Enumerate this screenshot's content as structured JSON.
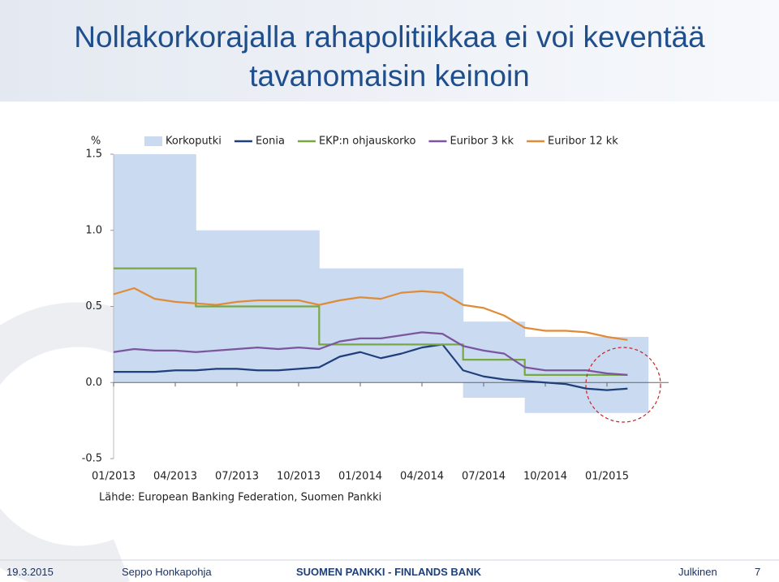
{
  "title": "Nollakorkorajalla rahapolitiikkaa ei voi keventää tavanomaisin keinoin",
  "chart_data": {
    "type": "line",
    "ylabel": "%",
    "x": [
      "01/2013",
      "02/2013",
      "03/2013",
      "04/2013",
      "05/2013",
      "06/2013",
      "07/2013",
      "08/2013",
      "09/2013",
      "10/2013",
      "11/2013",
      "12/2013",
      "01/2014",
      "02/2014",
      "03/2014",
      "04/2014",
      "05/2014",
      "06/2014",
      "07/2014",
      "08/2014",
      "09/2014",
      "10/2014",
      "11/2014",
      "12/2014",
      "01/2015",
      "02/2015"
    ],
    "xlim": [
      "01/2013",
      "04/2015"
    ],
    "xticks": [
      "01/2013",
      "04/2013",
      "07/2013",
      "10/2013",
      "01/2014",
      "04/2014",
      "07/2014",
      "10/2014",
      "01/2015"
    ],
    "ylim": [
      -0.5,
      1.5
    ],
    "yticks": [
      {
        "value": 1.5,
        "label": "1.5"
      },
      {
        "value": 1.0,
        "label": "1.0"
      },
      {
        "value": 0.5,
        "label": "0.5"
      },
      {
        "value": 0,
        "label": "0.0"
      },
      {
        "value": -0.5,
        "label": "-0.5"
      }
    ],
    "series": [
      {
        "name": "Korkoputki",
        "kind": "band",
        "color": "#c9daf1",
        "values": [
          1.5,
          1.5,
          1.5,
          1.5,
          1.0,
          1.0,
          1.0,
          1.0,
          1.0,
          1.0,
          0.75,
          0.75,
          0.75,
          0.75,
          0.75,
          0.75,
          0.75,
          0.4,
          0.4,
          0.4,
          0.3,
          0.3,
          0.3,
          0.3,
          0.3,
          0.3
        ],
        "lower": [
          0,
          0,
          0,
          0,
          0,
          0,
          0,
          0,
          0,
          0,
          0,
          0,
          0,
          0,
          0,
          0,
          0,
          -0.1,
          -0.1,
          -0.1,
          -0.2,
          -0.2,
          -0.2,
          -0.2,
          -0.2,
          -0.2
        ]
      },
      {
        "name": "Eonia",
        "color": "#1f3f7a",
        "values": [
          0.07,
          0.07,
          0.07,
          0.08,
          0.08,
          0.09,
          0.09,
          0.08,
          0.08,
          0.09,
          0.1,
          0.17,
          0.2,
          0.16,
          0.19,
          0.23,
          0.25,
          0.08,
          0.04,
          0.02,
          0.01,
          0.0,
          -0.01,
          -0.04,
          -0.05,
          -0.04
        ]
      },
      {
        "name": "EKP:n ohjauskorko",
        "color": "#77a844",
        "step": true,
        "values": [
          0.75,
          0.75,
          0.75,
          0.75,
          0.5,
          0.5,
          0.5,
          0.5,
          0.5,
          0.5,
          0.25,
          0.25,
          0.25,
          0.25,
          0.25,
          0.25,
          0.25,
          0.15,
          0.15,
          0.15,
          0.05,
          0.05,
          0.05,
          0.05,
          0.05,
          0.05
        ]
      },
      {
        "name": "Euribor 3 kk",
        "color": "#7b559e",
        "values": [
          0.2,
          0.22,
          0.21,
          0.21,
          0.2,
          0.21,
          0.22,
          0.23,
          0.22,
          0.23,
          0.22,
          0.27,
          0.29,
          0.29,
          0.31,
          0.33,
          0.32,
          0.24,
          0.21,
          0.19,
          0.1,
          0.08,
          0.08,
          0.08,
          0.06,
          0.05
        ]
      },
      {
        "name": "Euribor 12 kk",
        "color": "#e08b37",
        "values": [
          0.58,
          0.62,
          0.55,
          0.53,
          0.52,
          0.51,
          0.53,
          0.54,
          0.54,
          0.54,
          0.51,
          0.54,
          0.56,
          0.55,
          0.59,
          0.6,
          0.59,
          0.51,
          0.49,
          0.44,
          0.36,
          0.34,
          0.34,
          0.33,
          0.3,
          0.28
        ]
      }
    ],
    "source": "Lähde: European Banking Federation, Suomen Pankki"
  },
  "footer": {
    "date": "19.3.2015",
    "author": "Seppo Honkapohja",
    "organization": "SUOMEN PANKKI - FINLANDS BANK",
    "classification": "Julkinen",
    "page": "7"
  }
}
